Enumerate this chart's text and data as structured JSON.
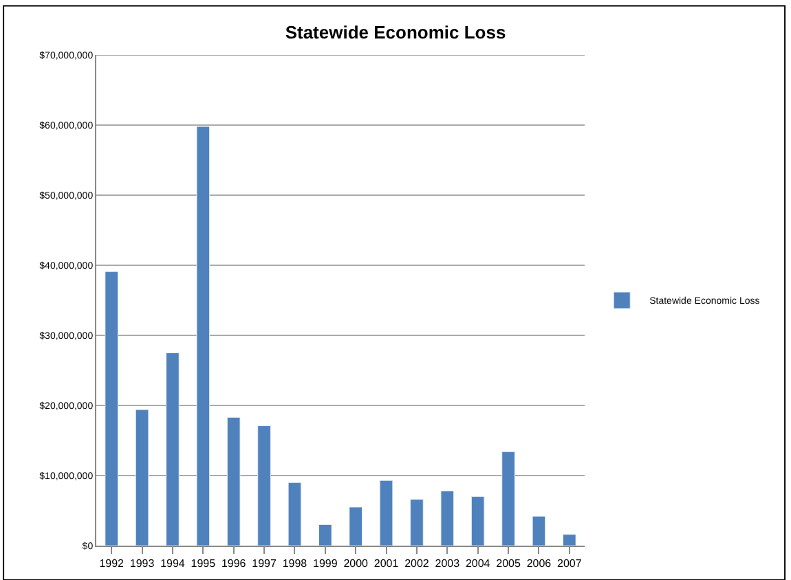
{
  "chart_data": {
    "type": "bar",
    "title": "Statewide Economic Loss",
    "categories": [
      "1992",
      "1993",
      "1994",
      "1995",
      "1996",
      "1997",
      "1998",
      "1999",
      "2000",
      "2001",
      "2002",
      "2003",
      "2004",
      "2005",
      "2006",
      "2007"
    ],
    "series": [
      {
        "name": "Statewide Economic Loss",
        "color": "#4f81bd",
        "values": [
          39100000,
          19400000,
          27500000,
          59800000,
          18300000,
          17100000,
          9000000,
          3000000,
          5500000,
          9300000,
          6600000,
          7800000,
          7000000,
          13400000,
          4200000,
          1600000
        ]
      }
    ],
    "ylim": [
      0,
      70000000
    ],
    "yticks": [
      {
        "value": 0,
        "label": "$0"
      },
      {
        "value": 10000000,
        "label": "$10,000,000"
      },
      {
        "value": 20000000,
        "label": "$20,000,000"
      },
      {
        "value": 30000000,
        "label": "$30,000,000"
      },
      {
        "value": 40000000,
        "label": "$40,000,000"
      },
      {
        "value": 50000000,
        "label": "$50,000,000"
      },
      {
        "value": 60000000,
        "label": "$60,000,000"
      },
      {
        "value": 70000000,
        "label": "$70,000,000"
      }
    ],
    "grid": "y",
    "legend": "right"
  }
}
